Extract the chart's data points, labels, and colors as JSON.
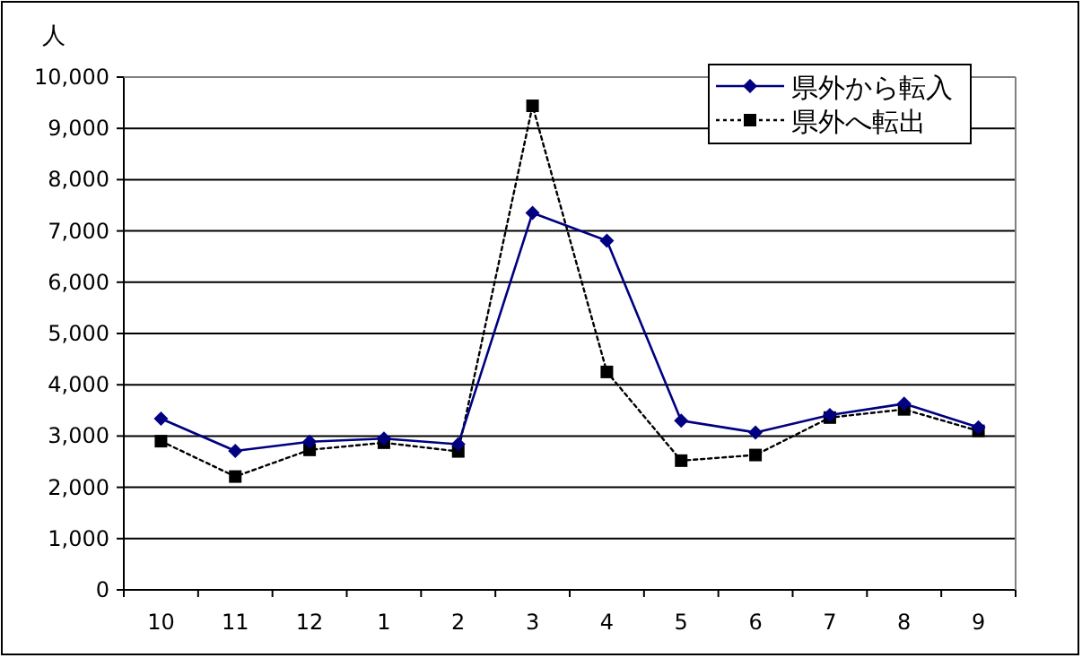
{
  "chart_data": {
    "type": "line",
    "ylabel": "人",
    "categories": [
      "10",
      "11",
      "12",
      "1",
      "2",
      "3",
      "4",
      "5",
      "6",
      "7",
      "8",
      "9"
    ],
    "series": [
      {
        "name": "県外から転入",
        "color": "#000080",
        "marker": "diamond",
        "line_style": "solid",
        "values": [
          3340,
          2710,
          2890,
          2950,
          2840,
          7350,
          6810,
          3300,
          3070,
          3410,
          3630,
          3170
        ]
      },
      {
        "name": "県外へ転出",
        "color": "#000000",
        "marker": "square",
        "line_style": "dotted",
        "values": [
          2900,
          2210,
          2730,
          2870,
          2700,
          9440,
          4250,
          2520,
          2630,
          3360,
          3520,
          3100
        ]
      }
    ],
    "ylim": [
      0,
      10000
    ],
    "yticks": [
      {
        "value": 0,
        "label": "0"
      },
      {
        "value": 1000,
        "label": "1,000"
      },
      {
        "value": 2000,
        "label": "2,000"
      },
      {
        "value": 3000,
        "label": "3,000"
      },
      {
        "value": 4000,
        "label": "4,000"
      },
      {
        "value": 5000,
        "label": "5,000"
      },
      {
        "value": 6000,
        "label": "6,000"
      },
      {
        "value": 7000,
        "label": "7,000"
      },
      {
        "value": 8000,
        "label": "8,000"
      },
      {
        "value": 9000,
        "label": "9,000"
      },
      {
        "value": 10000,
        "label": "10,000"
      }
    ],
    "grid": "y",
    "legend": "top right"
  }
}
